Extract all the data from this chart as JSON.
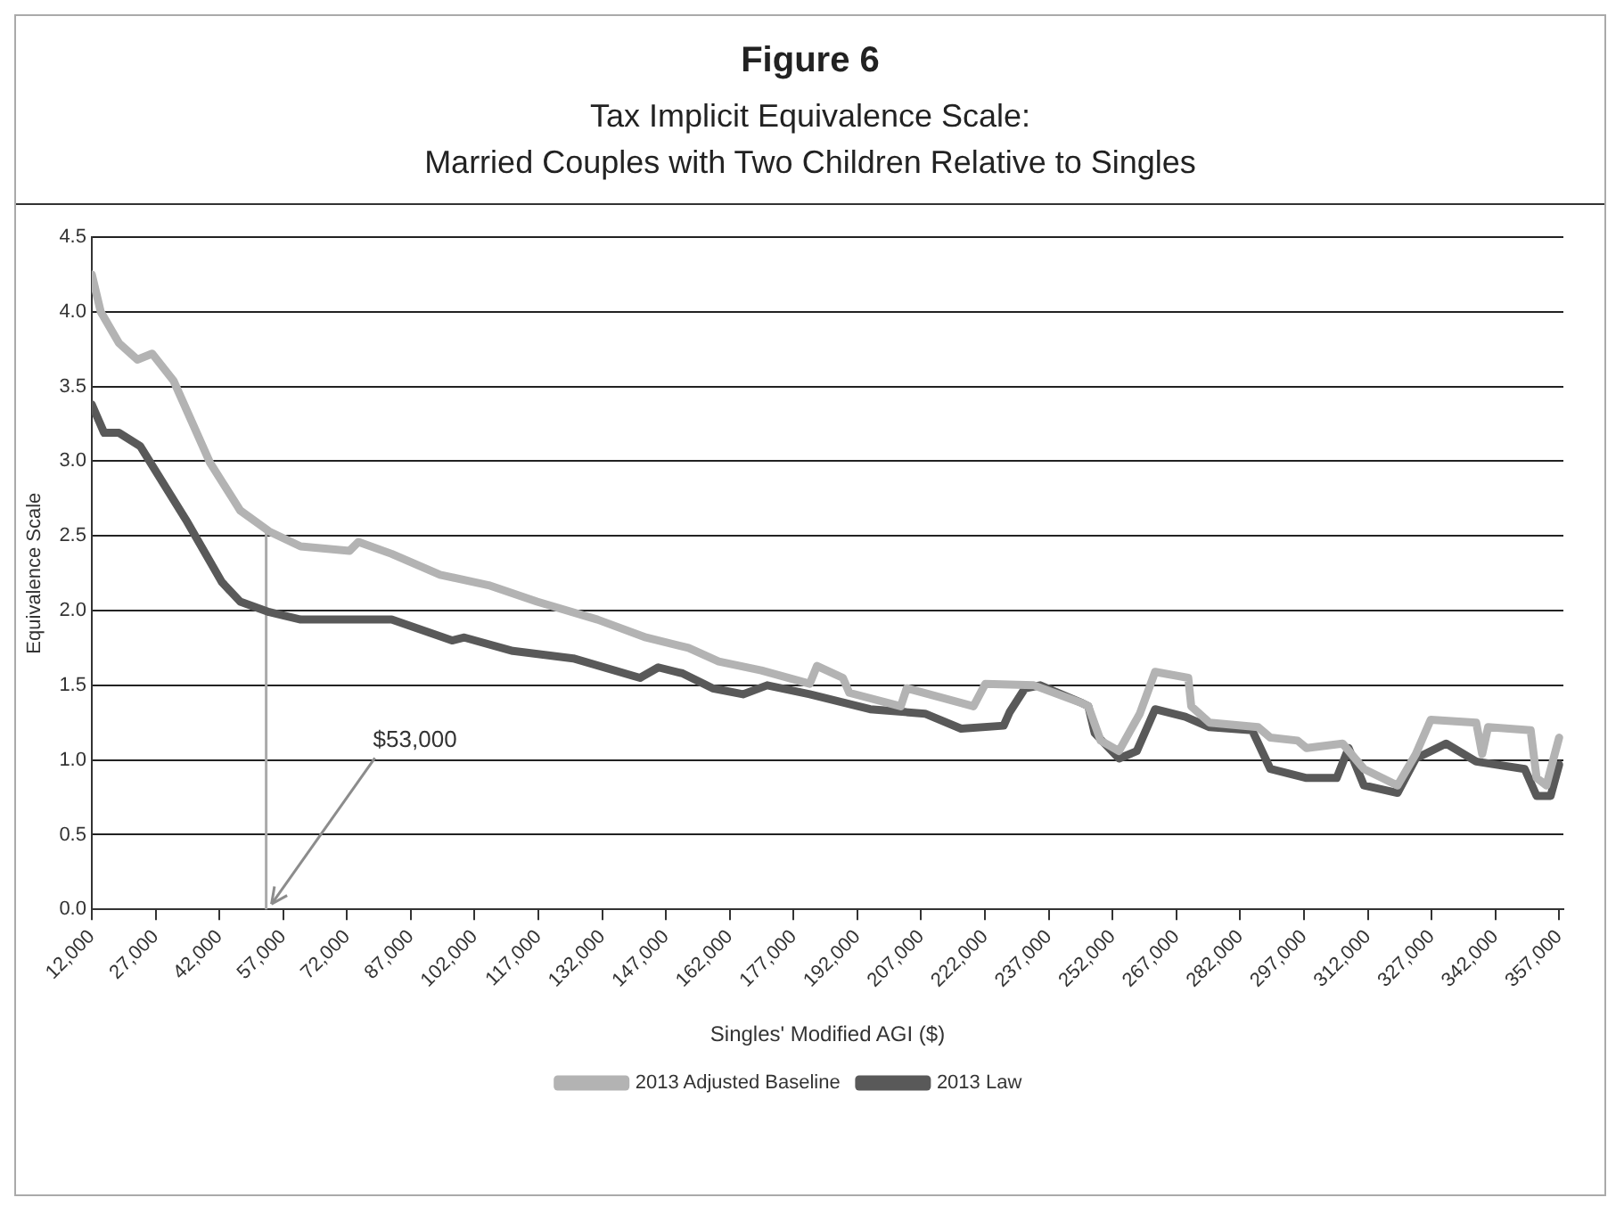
{
  "chart_data": {
    "type": "line",
    "title": "Figure 6",
    "subtitle": "Tax Implicit Equivalence Scale:\nMarried Couples with Two Children Relative to Singles",
    "xlabel": "Singles' Modified AGI ($)",
    "ylabel": "Equivalence Scale",
    "xlim": [
      12000,
      358000
    ],
    "ylim": [
      0,
      4.5
    ],
    "xticks": [
      {
        "value": 12000,
        "label": "12,000"
      },
      {
        "value": 27000,
        "label": "27,000"
      },
      {
        "value": 42000,
        "label": "42,000"
      },
      {
        "value": 57000,
        "label": "57,000"
      },
      {
        "value": 72000,
        "label": "72,000"
      },
      {
        "value": 87000,
        "label": "87,000"
      },
      {
        "value": 102000,
        "label": "102,000"
      },
      {
        "value": 117000,
        "label": "117,000"
      },
      {
        "value": 132000,
        "label": "132,000"
      },
      {
        "value": 147000,
        "label": "147,000"
      },
      {
        "value": 162000,
        "label": "162,000"
      },
      {
        "value": 177000,
        "label": "177,000"
      },
      {
        "value": 192000,
        "label": "192,000"
      },
      {
        "value": 207000,
        "label": "207,000"
      },
      {
        "value": 222000,
        "label": "222,000"
      },
      {
        "value": 237000,
        "label": "237,000"
      },
      {
        "value": 252000,
        "label": "252,000"
      },
      {
        "value": 267000,
        "label": "267,000"
      },
      {
        "value": 282000,
        "label": "282,000"
      },
      {
        "value": 297000,
        "label": "297,000"
      },
      {
        "value": 312000,
        "label": "312,000"
      },
      {
        "value": 327000,
        "label": "327,000"
      },
      {
        "value": 342000,
        "label": "342,000"
      },
      {
        "value": 357000,
        "label": "357,000"
      }
    ],
    "yticks": [
      {
        "value": 0,
        "label": "0.0"
      },
      {
        "value": 0.5,
        "label": "0.5"
      },
      {
        "value": 1,
        "label": "1.0"
      },
      {
        "value": 1.5,
        "label": "1.5"
      },
      {
        "value": 2,
        "label": "2.0"
      },
      {
        "value": 2.5,
        "label": "2.5"
      },
      {
        "value": 3,
        "label": "3.0"
      },
      {
        "value": 3.5,
        "label": "3.5"
      },
      {
        "value": 4,
        "label": "4.0"
      },
      {
        "value": 4.5,
        "label": "4.5"
      }
    ],
    "grid": "y",
    "legend": "bottom",
    "marker": "none",
    "line_style": "solid",
    "annotations": [
      {
        "text": "$53,000",
        "x": 53000,
        "y": 0
      }
    ],
    "series": [
      {
        "name": "2013 Adjusted Baseline",
        "color": "#b3b3b3",
        "x": [
          12000,
          14100,
          18400,
          22700,
          26200,
          31200,
          39800,
          46900,
          53700,
          61100,
          72600,
          74700,
          82500,
          93900,
          105300,
          116700,
          130900,
          142300,
          152300,
          159400,
          169400,
          180800,
          182500,
          188600,
          190100,
          202200,
          203600,
          219300,
          222100,
          233500,
          244900,
          246300,
          249200,
          253500,
          258400,
          262000,
          269800,
          270500,
          274800,
          286200,
          289100,
          295500,
          297600,
          306100,
          311100,
          319000,
          323300,
          326800,
          337500,
          338900,
          340300,
          350300,
          351700,
          354000,
          357000
        ],
        "values": [
          4.25,
          4.0,
          3.79,
          3.68,
          3.72,
          3.54,
          2.99,
          2.67,
          2.53,
          2.43,
          2.4,
          2.46,
          2.38,
          2.24,
          2.17,
          2.06,
          1.94,
          1.82,
          1.75,
          1.66,
          1.6,
          1.51,
          1.63,
          1.55,
          1.45,
          1.36,
          1.48,
          1.36,
          1.51,
          1.5,
          1.38,
          1.36,
          1.13,
          1.06,
          1.31,
          1.59,
          1.55,
          1.36,
          1.25,
          1.22,
          1.15,
          1.13,
          1.08,
          1.11,
          0.94,
          0.83,
          1.04,
          1.27,
          1.25,
          1.04,
          1.22,
          1.2,
          0.88,
          0.83,
          1.15
        ]
      },
      {
        "name": "2013 Law",
        "color": "#595959",
        "x": [
          12000,
          14900,
          18400,
          23400,
          34100,
          42600,
          46900,
          53700,
          61100,
          82500,
          96700,
          99600,
          111000,
          125200,
          140900,
          145200,
          150900,
          158000,
          165100,
          170800,
          180800,
          195000,
          207900,
          216400,
          226400,
          227800,
          231400,
          235000,
          244900,
          246300,
          247800,
          253500,
          257700,
          262000,
          269100,
          274800,
          284800,
          289100,
          294700,
          297600,
          304700,
          307500,
          311100,
          319000,
          323300,
          330400,
          337500,
          348900,
          351700,
          355000,
          357000
        ],
        "values": [
          3.38,
          3.19,
          3.19,
          3.1,
          2.61,
          2.19,
          2.06,
          1.99,
          1.94,
          1.94,
          1.8,
          1.82,
          1.73,
          1.68,
          1.55,
          1.62,
          1.58,
          1.48,
          1.44,
          1.5,
          1.44,
          1.34,
          1.31,
          1.21,
          1.23,
          1.32,
          1.48,
          1.5,
          1.38,
          1.36,
          1.18,
          1.01,
          1.06,
          1.34,
          1.29,
          1.22,
          1.2,
          0.94,
          0.9,
          0.88,
          0.88,
          1.08,
          0.83,
          0.78,
          1.01,
          1.11,
          0.99,
          0.94,
          0.76,
          0.76,
          0.97
        ]
      },
      {
        "color": "#aaaaaa",
        "x": [
          53000,
          53000
        ],
        "values": [
          0,
          2.53
        ]
      }
    ]
  }
}
